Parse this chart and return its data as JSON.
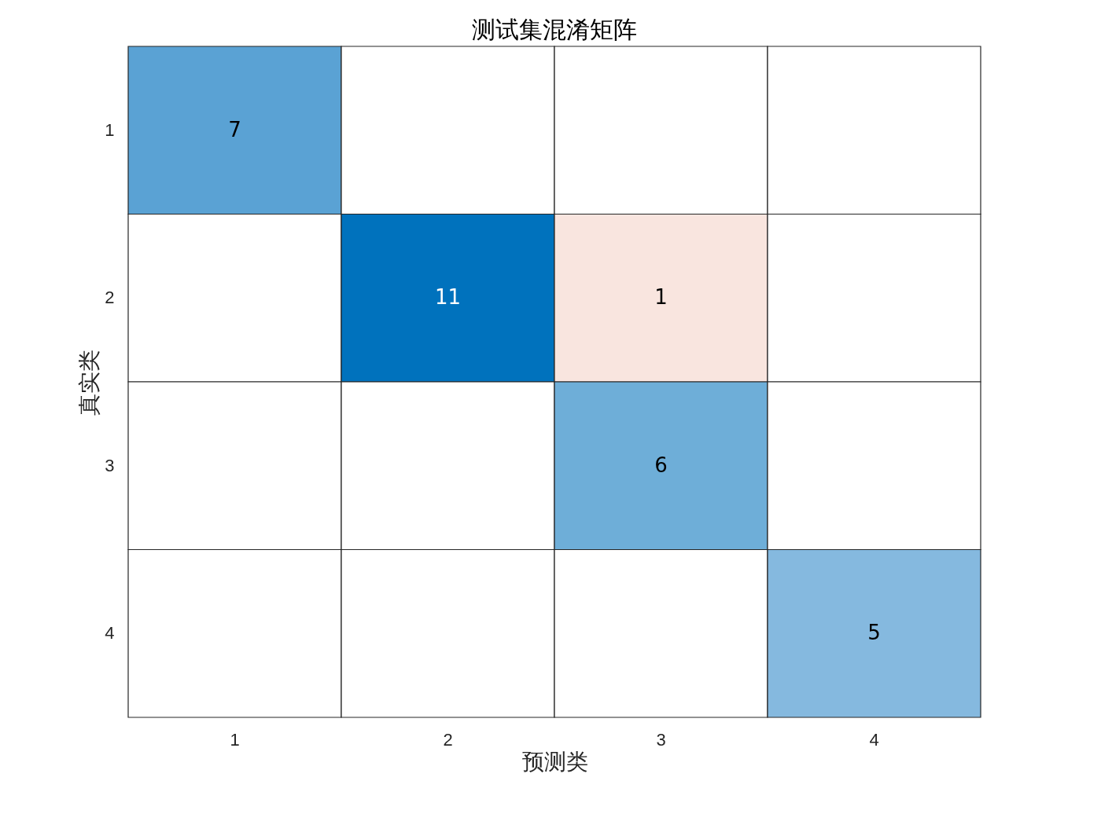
{
  "chart_data": {
    "type": "heatmap",
    "title": "测试集混淆矩阵",
    "xlabel": "预测类",
    "ylabel": "真实类",
    "categories": [
      "1",
      "2",
      "3",
      "4"
    ],
    "y_categories": [
      "1",
      "2",
      "3",
      "4"
    ],
    "cells": [
      [
        7,
        null,
        null,
        null
      ],
      [
        null,
        11,
        1,
        null
      ],
      [
        null,
        null,
        6,
        null
      ],
      [
        null,
        null,
        null,
        5
      ]
    ],
    "colors": [
      [
        "#5aa2d4",
        "#ffffff",
        "#ffffff",
        "#ffffff"
      ],
      [
        "#ffffff",
        "#0072bd",
        "#f9e5df",
        "#ffffff"
      ],
      [
        "#ffffff",
        "#ffffff",
        "#6eaed8",
        "#ffffff"
      ],
      [
        "#ffffff",
        "#ffffff",
        "#ffffff",
        "#85b9df"
      ]
    ],
    "data_labels": true,
    "grid": false
  }
}
